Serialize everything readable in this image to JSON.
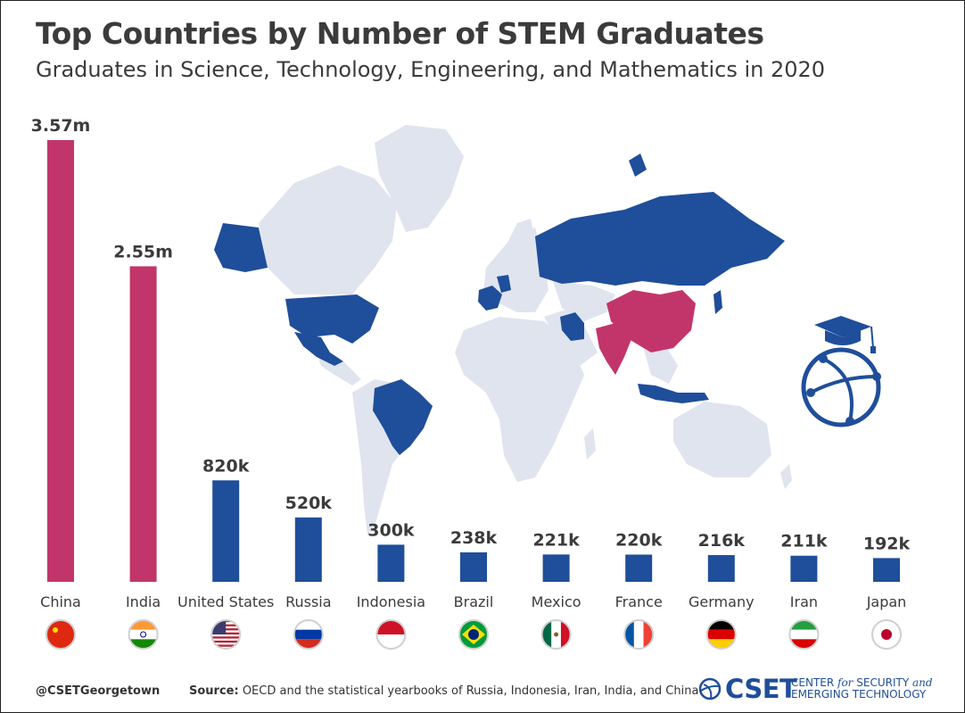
{
  "header": {
    "title": "Top Countries by Number of STEM Graduates",
    "subtitle": "Graduates in Science, Technology, Engineering, and Mathematics in 2020"
  },
  "chart_data": {
    "type": "bar",
    "title": "Top Countries by Number of STEM Graduates",
    "subtitle": "Graduates in Science, Technology, Engineering, and Mathematics in 2020",
    "categories": [
      "China",
      "India",
      "United States",
      "Russia",
      "Indonesia",
      "Brazil",
      "Mexico",
      "France",
      "Germany",
      "Iran",
      "Japan"
    ],
    "values": [
      3570000,
      2550000,
      820000,
      520000,
      300000,
      238000,
      221000,
      220000,
      216000,
      211000,
      192000
    ],
    "data_labels": [
      "3.57m",
      "2.55m",
      "820k",
      "520k",
      "300k",
      "238k",
      "221k",
      "220k",
      "216k",
      "211k",
      "192k"
    ],
    "colors": [
      "#c2356b",
      "#c2356b",
      "#1f4e9a",
      "#1f4e9a",
      "#1f4e9a",
      "#1f4e9a",
      "#1f4e9a",
      "#1f4e9a",
      "#1f4e9a",
      "#1f4e9a",
      "#1f4e9a"
    ],
    "flags": [
      "china-flag-icon",
      "india-flag-icon",
      "united-states-flag-icon",
      "russia-flag-icon",
      "indonesia-flag-icon",
      "brazil-flag-icon",
      "mexico-flag-icon",
      "france-flag-icon",
      "germany-flag-icon",
      "iran-flag-icon",
      "japan-flag-icon"
    ],
    "ylim": [
      0,
      3570000
    ],
    "grid": false,
    "legend": "none"
  },
  "colors": {
    "highlight": "#c2356b",
    "primary": "#1f4e9a",
    "map_base": "#dfe4ee",
    "text": "#3b3b3b"
  },
  "footer": {
    "handle": "@CSETGeorgetown",
    "source_label": "Source:",
    "source_text": "OECD and the statistical yearbooks of Russia, Indonesia, Iran, India, and China",
    "logo_text": "CSET",
    "logo_line1": "CENTER",
    "logo_line1_italic": "for",
    "logo_line1_end": "SECURITY",
    "logo_line1_italic2": "and",
    "logo_line2": "EMERGING TECHNOLOGY"
  },
  "icons": {
    "graduation": "graduation-cap-globe-icon",
    "logo": "cset-logo-icon"
  }
}
